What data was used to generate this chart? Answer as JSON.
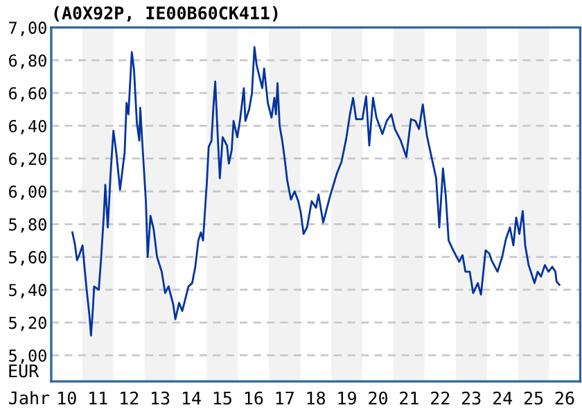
{
  "chart_data": {
    "type": "line",
    "title": "(A0X92P, IE00B60CK411)",
    "xlabel": "Jahr",
    "ylabel": "EUR",
    "series": [
      {
        "color": "#0033a0",
        "x": [
          "2010-09-06",
          "2010-10-05",
          "2010-10-31",
          "2010-11-25",
          "2011-01-04",
          "2011-01-26",
          "2011-02-17",
          "2011-03-26",
          "2011-04-13",
          "2011-05-05",
          "2011-05-20",
          "2011-07-13",
          "2011-08-08",
          "2011-09-10",
          "2011-09-28",
          "2011-10-27",
          "2011-11-29",
          "2012-01-01",
          "2012-02-03",
          "2012-03-19",
          "2012-05-12",
          "2012-06-03",
          "2012-06-25",
          "2012-08-04",
          "2012-08-30",
          "2012-10-02",
          "2012-10-31",
          "2012-11-11",
          "2012-12-14",
          "2013-01-16",
          "2013-02-06",
          "2013-03-11",
          "2013-04-17",
          "2013-05-27",
          "2013-07-21",
          "2013-08-30",
          "2013-10-09",
          "2013-12-03",
          "2013-12-28",
          "2014-02-10",
          "2014-03-19",
          "2014-05-31",
          "2014-07-13",
          "2014-08-19",
          "2014-09-24",
          "2014-10-24",
          "2014-11-18",
          "2015-01-01",
          "2015-01-23",
          "2015-02-25",
          "2015-03-19",
          "2015-04-10",
          "2015-05-09",
          "2015-06-03",
          "2015-07-06",
          "2015-08-26",
          "2015-09-17",
          "2015-10-20",
          "2015-11-11",
          "2015-12-25",
          "2016-01-27",
          "2016-03-11",
          "2016-03-29",
          "2016-05-12",
          "2016-06-14",
          "2016-07-13",
          "2016-08-08",
          "2016-09-10",
          "2016-10-13",
          "2016-11-04",
          "2016-12-17",
          "2017-01-30",
          "2017-03-04",
          "2017-03-22",
          "2017-04-10",
          "2017-05-05",
          "2017-06-07",
          "2017-07-10",
          "2017-08-01",
          "2017-09-14",
          "2017-10-27",
          "2017-12-10",
          "2018-01-08",
          "2018-02-10",
          "2018-03-22",
          "2018-05-16",
          "2018-07-06",
          "2018-08-04",
          "2018-09-28",
          "2018-12-17",
          "2019-03-08",
          "2019-05-01",
          "2019-06-25",
          "2019-08-08",
          "2019-09-14",
          "2019-10-20",
          "2020-01-01",
          "2020-02-14",
          "2020-03-22",
          "2020-05-05",
          "2020-06-14",
          "2020-08-23",
          "2020-10-13",
          "2020-12-06",
          "2021-01-16",
          "2021-03-26",
          "2021-05-31",
          "2021-07-24",
          "2021-09-14",
          "2021-10-27",
          "2021-12-10",
          "2022-01-27",
          "2022-03-22",
          "2022-05-16",
          "2022-06-22",
          "2022-08-04",
          "2022-09-06",
          "2022-10-09",
          "2022-12-03",
          "2023-02-10",
          "2023-03-22",
          "2023-04-24",
          "2023-06-14",
          "2023-07-24",
          "2023-09-17",
          "2023-10-24",
          "2023-12-17",
          "2024-01-30",
          "2024-02-25",
          "2024-05-05",
          "2024-06-29",
          "2024-08-12",
          "2024-09-28",
          "2024-11-07",
          "2024-12-10",
          "2025-01-16",
          "2025-02-25",
          "2025-03-26",
          "2025-05-05",
          "2025-05-31",
          "2025-07-13",
          "2025-08-19",
          "2025-09-28",
          "2025-11-11",
          "2025-12-25",
          "2026-02-06",
          "2026-03-15",
          "2026-03-29",
          "2026-05-01"
        ],
        "values": [
          5.75,
          5.68,
          5.58,
          5.61,
          5.67,
          5.54,
          5.42,
          5.24,
          5.12,
          5.28,
          5.42,
          5.4,
          5.58,
          5.85,
          6.04,
          5.78,
          6.11,
          6.37,
          6.24,
          6.01,
          6.24,
          6.54,
          6.47,
          6.85,
          6.74,
          6.42,
          6.31,
          6.51,
          6.22,
          5.94,
          5.6,
          5.85,
          5.77,
          5.6,
          5.51,
          5.38,
          5.42,
          5.31,
          5.22,
          5.32,
          5.27,
          5.42,
          5.44,
          5.54,
          5.7,
          5.75,
          5.7,
          6.05,
          6.27,
          6.31,
          6.51,
          6.67,
          6.34,
          6.08,
          6.33,
          6.28,
          6.17,
          6.25,
          6.43,
          6.33,
          6.44,
          6.63,
          6.43,
          6.5,
          6.6,
          6.88,
          6.77,
          6.7,
          6.63,
          6.75,
          6.54,
          6.45,
          6.57,
          6.47,
          6.66,
          6.4,
          6.3,
          6.17,
          6.07,
          5.95,
          6.0,
          5.94,
          5.87,
          5.74,
          5.78,
          5.94,
          5.9,
          5.98,
          5.81,
          5.97,
          6.11,
          6.18,
          6.32,
          6.47,
          6.57,
          6.44,
          6.44,
          6.58,
          6.28,
          6.57,
          6.45,
          6.35,
          6.43,
          6.47,
          6.38,
          6.31,
          6.21,
          6.44,
          6.43,
          6.38,
          6.53,
          6.34,
          6.21,
          6.08,
          5.78,
          6.14,
          5.97,
          5.7,
          5.64,
          5.57,
          5.61,
          5.51,
          5.51,
          5.38,
          5.44,
          5.37,
          5.64,
          5.62,
          5.58,
          5.51,
          5.6,
          5.71,
          5.78,
          5.67,
          5.84,
          5.74,
          5.88,
          5.67,
          5.55,
          5.51,
          5.44,
          5.51,
          5.48,
          5.55,
          5.51,
          5.54,
          5.51,
          5.45,
          5.43
        ]
      }
    ],
    "xlim": [
      "2010-01-01",
      "2027-01-01"
    ],
    "xticks": [
      {
        "value": "2010-07-02",
        "label": "10"
      },
      {
        "value": "2011-07-02",
        "label": "11"
      },
      {
        "value": "2012-07-02",
        "label": "12"
      },
      {
        "value": "2013-07-02",
        "label": "13"
      },
      {
        "value": "2014-07-02",
        "label": "14"
      },
      {
        "value": "2015-07-02",
        "label": "15"
      },
      {
        "value": "2016-07-02",
        "label": "16"
      },
      {
        "value": "2017-07-02",
        "label": "17"
      },
      {
        "value": "2018-07-02",
        "label": "18"
      },
      {
        "value": "2019-07-02",
        "label": "19"
      },
      {
        "value": "2020-07-02",
        "label": "20"
      },
      {
        "value": "2021-07-02",
        "label": "21"
      },
      {
        "value": "2022-07-02",
        "label": "22"
      },
      {
        "value": "2023-07-02",
        "label": "23"
      },
      {
        "value": "2024-07-02",
        "label": "24"
      },
      {
        "value": "2025-07-02",
        "label": "25"
      },
      {
        "value": "2026-07-02",
        "label": "26"
      }
    ],
    "ylim": [
      4.84,
      7.0
    ],
    "yticks": [
      {
        "value": 5.0,
        "label": "5,00"
      },
      {
        "value": 5.2,
        "label": "5,20"
      },
      {
        "value": 5.4,
        "label": "5,40"
      },
      {
        "value": 5.6,
        "label": "5,60"
      },
      {
        "value": 5.8,
        "label": "5,80"
      },
      {
        "value": 6.0,
        "label": "6,00"
      },
      {
        "value": 6.2,
        "label": "6,20"
      },
      {
        "value": 6.4,
        "label": "6,40"
      },
      {
        "value": 6.6,
        "label": "6,60"
      },
      {
        "value": 6.8,
        "label": "6,80"
      },
      {
        "value": 7.0,
        "label": "7,00"
      }
    ],
    "bands": [
      {
        "axis": "x",
        "from": "2011-01-01",
        "to": "2012-01-01",
        "color": "#f2f2f2"
      },
      {
        "axis": "x",
        "from": "2013-01-01",
        "to": "2014-01-01",
        "color": "#f2f2f2"
      },
      {
        "axis": "x",
        "from": "2015-01-01",
        "to": "2016-01-01",
        "color": "#f2f2f2"
      },
      {
        "axis": "x",
        "from": "2017-01-01",
        "to": "2018-01-01",
        "color": "#f2f2f2"
      },
      {
        "axis": "x",
        "from": "2019-01-01",
        "to": "2020-01-01",
        "color": "#f2f2f2"
      },
      {
        "axis": "x",
        "from": "2021-01-01",
        "to": "2022-01-01",
        "color": "#f2f2f2"
      },
      {
        "axis": "x",
        "from": "2023-01-01",
        "to": "2024-01-01",
        "color": "#f2f2f2"
      },
      {
        "axis": "x",
        "from": "2025-01-01",
        "to": "2026-01-01",
        "color": "#f2f2f2"
      }
    ],
    "grid": "y",
    "marker": "none",
    "line_style": "solid"
  }
}
